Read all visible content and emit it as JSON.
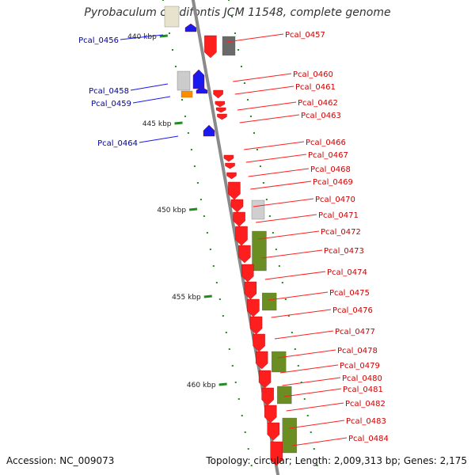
{
  "title": "Pyrobaculum calidifontis JCM 11548, complete genome",
  "accession": "Accession: NC_009073",
  "summary": "Topology: circular; Length: 2,009,313 bp; Genes: 2,175",
  "colors": {
    "forward_gene": "#ff1e1e",
    "reverse_gene": "#1a1aee",
    "label_forward": "#cc0000",
    "label_reverse": "#00009a",
    "tick": "#228b22",
    "backbone": "#8a8a8a",
    "feature_olive": "#6b8e23",
    "feature_grey": "#9a9a9a",
    "feature_orange": "#ff8c00"
  },
  "scale_labels": [
    "440 kbp",
    "445 kbp",
    "450 kbp",
    "455 kbp",
    "460 kbp"
  ],
  "forward_genes": [
    "Pcal_0457",
    "Pcal_0460",
    "Pcal_0461",
    "Pcal_0462",
    "Pcal_0463",
    "Pcal_0466",
    "Pcal_0467",
    "Pcal_0468",
    "Pcal_0469",
    "Pcal_0470",
    "Pcal_0471",
    "Pcal_0472",
    "Pcal_0473",
    "Pcal_0474",
    "Pcal_0475",
    "Pcal_0476",
    "Pcal_0477",
    "Pcal_0478",
    "Pcal_0479",
    "Pcal_0480",
    "Pcal_0481",
    "Pcal_0482",
    "Pcal_0483",
    "Pcal_0484"
  ],
  "reverse_genes": [
    "Pcal_0456",
    "Pcal_0458",
    "Pcal_0459",
    "Pcal_0464"
  ]
}
